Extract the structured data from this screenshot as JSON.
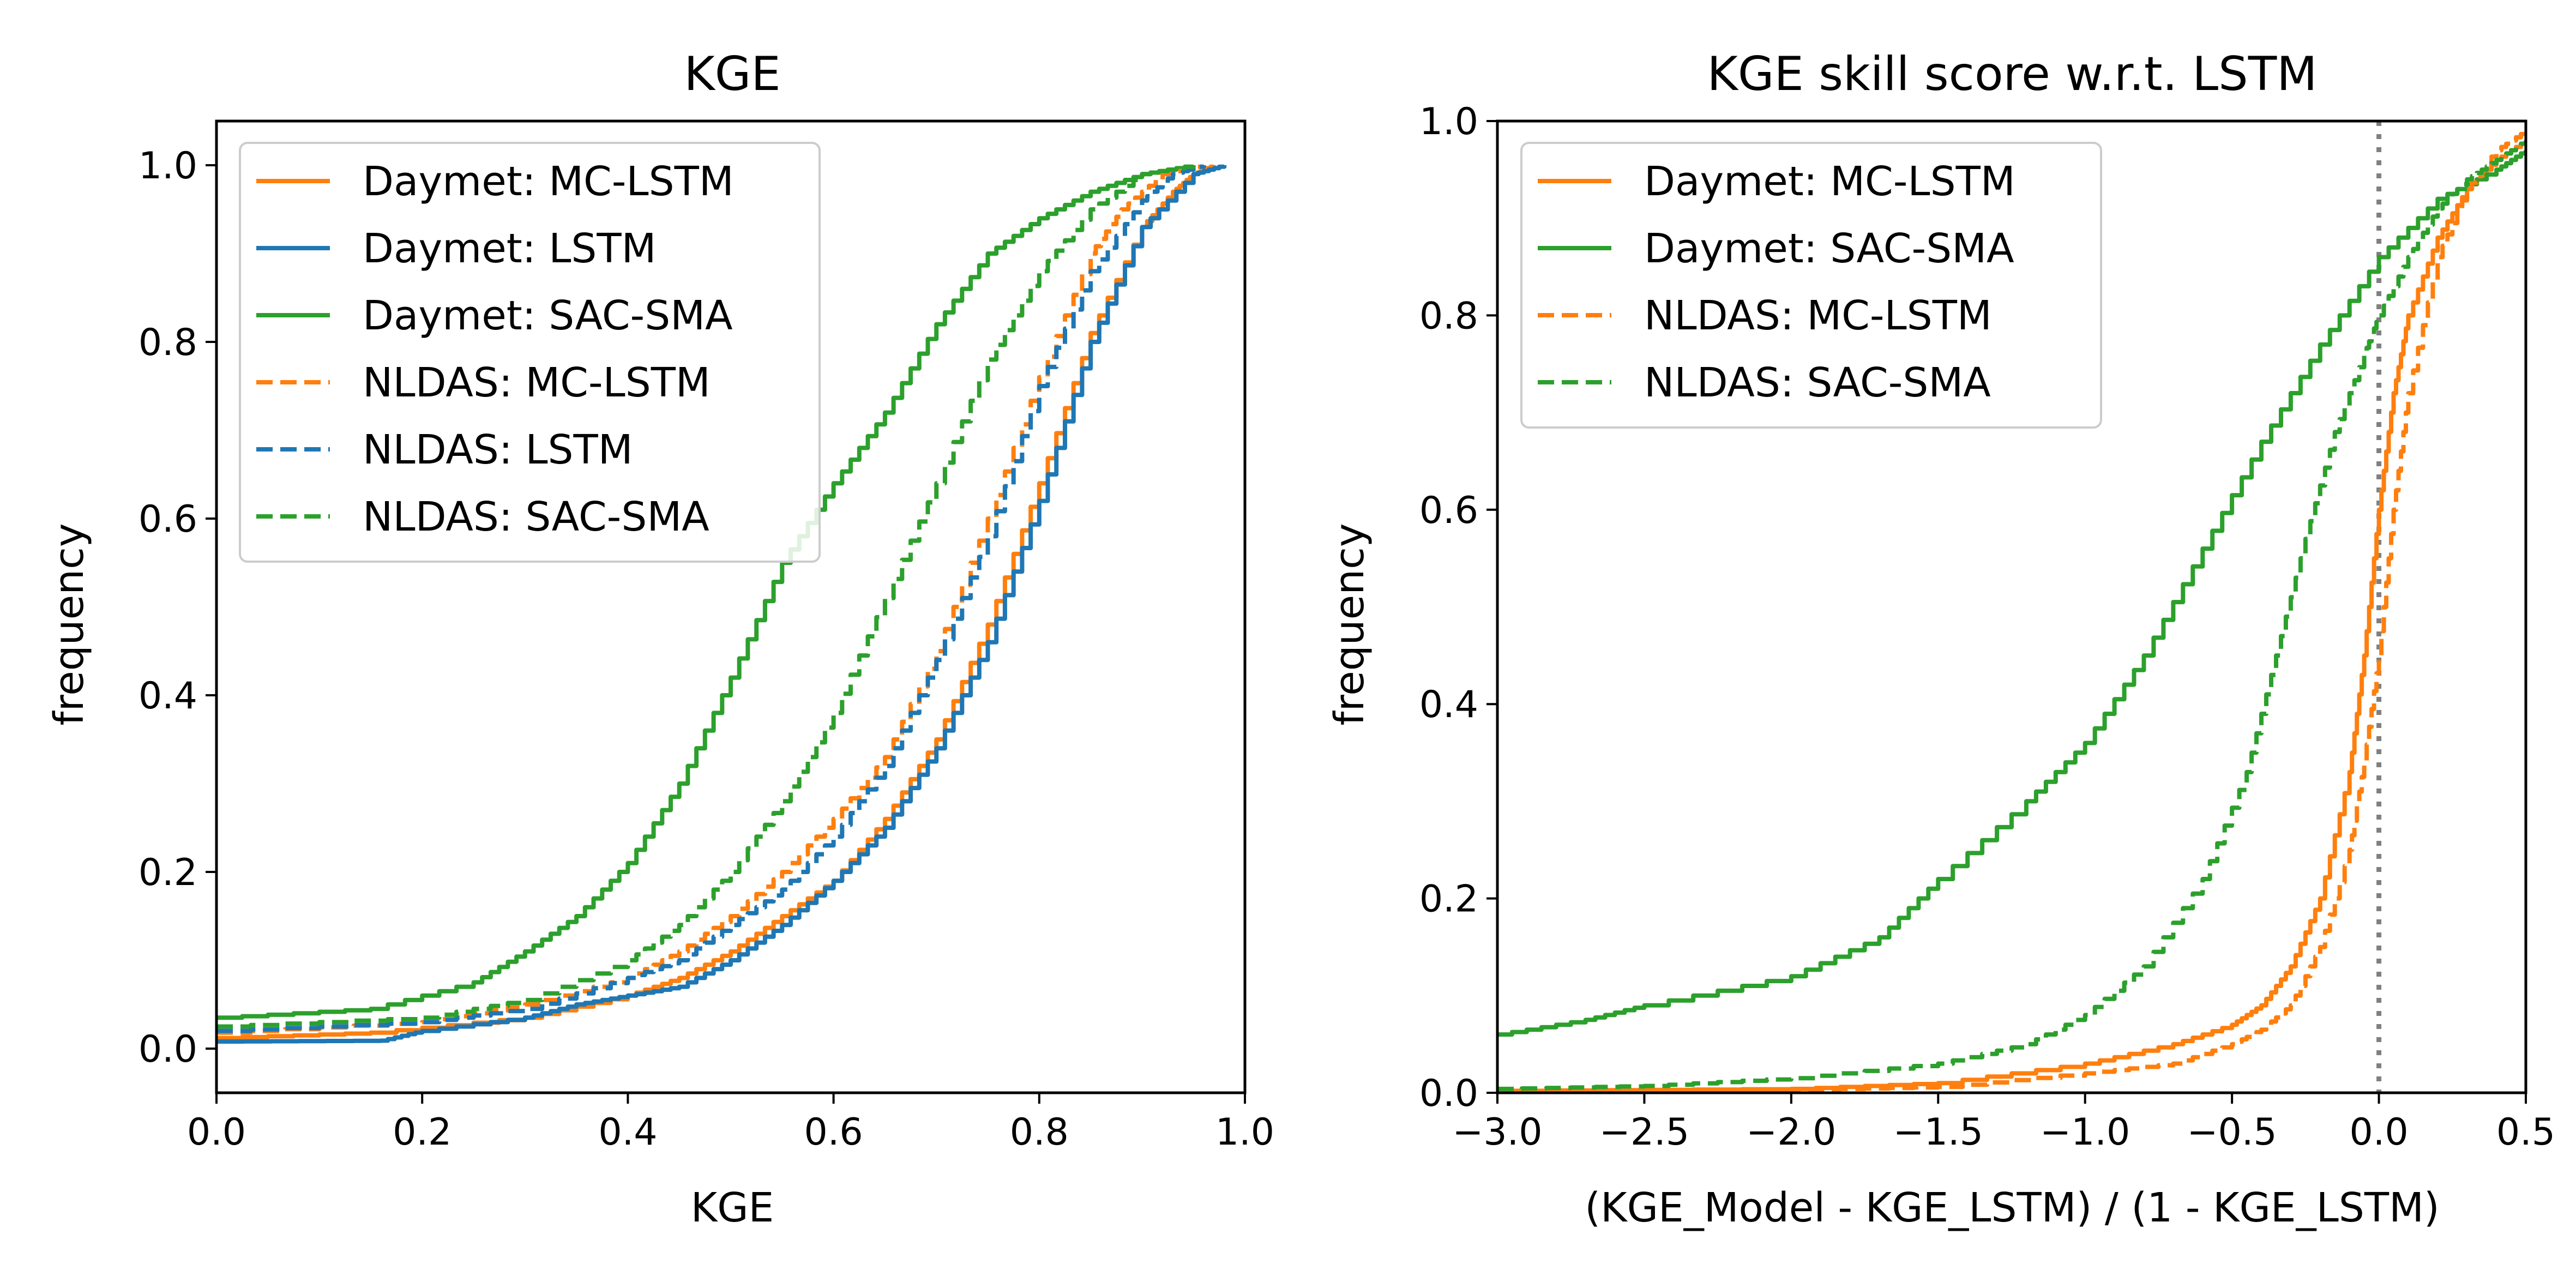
{
  "chart_data": [
    {
      "type": "line",
      "chart_kind": "cumulative distribution",
      "title": "KGE",
      "xlabel": "KGE",
      "ylabel": "frequency",
      "xlim": [
        0.0,
        1.0
      ],
      "ylim": [
        -0.05,
        1.05
      ],
      "xticks": [
        "0.0",
        "0.2",
        "0.4",
        "0.6",
        "0.8",
        "1.0"
      ],
      "yticks": [
        "0.0",
        "0.2",
        "0.4",
        "0.6",
        "0.8",
        "1.0"
      ],
      "grid": false,
      "legend_position": "upper-left",
      "series": [
        {
          "name": "Daymet: MC-LSTM",
          "color": "#ff7f0e",
          "style": "solid",
          "x": [
            0.0,
            0.15,
            0.3,
            0.4,
            0.45,
            0.5,
            0.55,
            0.6,
            0.65,
            0.7,
            0.75,
            0.8,
            0.85,
            0.9,
            0.93,
            0.95,
            0.97
          ],
          "y": [
            0.012,
            0.018,
            0.035,
            0.06,
            0.08,
            0.11,
            0.15,
            0.19,
            0.26,
            0.35,
            0.48,
            0.64,
            0.81,
            0.93,
            0.97,
            0.99,
            1.0
          ]
        },
        {
          "name": "Daymet: LSTM",
          "color": "#1f77b4",
          "style": "solid",
          "x": [
            0.0,
            0.16,
            0.2,
            0.3,
            0.35,
            0.4,
            0.45,
            0.5,
            0.55,
            0.6,
            0.65,
            0.7,
            0.75,
            0.8,
            0.85,
            0.9,
            0.95,
            0.98
          ],
          "y": [
            0.008,
            0.009,
            0.02,
            0.035,
            0.05,
            0.06,
            0.07,
            0.1,
            0.14,
            0.19,
            0.25,
            0.34,
            0.46,
            0.62,
            0.8,
            0.93,
            0.99,
            1.0
          ]
        },
        {
          "name": "Daymet: SAC-SMA",
          "color": "#2ca02c",
          "style": "solid",
          "x": [
            0.0,
            0.15,
            0.25,
            0.3,
            0.35,
            0.4,
            0.45,
            0.5,
            0.55,
            0.6,
            0.65,
            0.7,
            0.75,
            0.8,
            0.85,
            0.9,
            0.95
          ],
          "y": [
            0.035,
            0.045,
            0.075,
            0.11,
            0.15,
            0.21,
            0.3,
            0.42,
            0.55,
            0.64,
            0.72,
            0.82,
            0.9,
            0.94,
            0.97,
            0.99,
            1.0
          ]
        },
        {
          "name": "NLDAS: MC-LSTM",
          "color": "#ff7f0e",
          "style": "dashed",
          "x": [
            0.0,
            0.2,
            0.3,
            0.4,
            0.45,
            0.5,
            0.55,
            0.6,
            0.65,
            0.7,
            0.75,
            0.8,
            0.85,
            0.88,
            0.92,
            0.96
          ],
          "y": [
            0.018,
            0.03,
            0.05,
            0.08,
            0.11,
            0.15,
            0.2,
            0.26,
            0.33,
            0.45,
            0.6,
            0.76,
            0.9,
            0.95,
            0.99,
            1.0
          ]
        },
        {
          "name": "NLDAS: LSTM",
          "color": "#1f77b4",
          "style": "dashed",
          "x": [
            0.0,
            0.2,
            0.3,
            0.4,
            0.45,
            0.5,
            0.55,
            0.6,
            0.65,
            0.7,
            0.75,
            0.8,
            0.85,
            0.9,
            0.93,
            0.96
          ],
          "y": [
            0.02,
            0.03,
            0.045,
            0.08,
            0.1,
            0.14,
            0.18,
            0.24,
            0.32,
            0.44,
            0.58,
            0.75,
            0.88,
            0.96,
            0.99,
            1.0
          ]
        },
        {
          "name": "NLDAS: SAC-SMA",
          "color": "#2ca02c",
          "style": "dashed",
          "x": [
            0.0,
            0.2,
            0.3,
            0.4,
            0.45,
            0.5,
            0.55,
            0.6,
            0.65,
            0.7,
            0.75,
            0.8,
            0.85,
            0.9,
            0.95
          ],
          "y": [
            0.025,
            0.035,
            0.055,
            0.1,
            0.14,
            0.2,
            0.28,
            0.38,
            0.51,
            0.64,
            0.78,
            0.88,
            0.95,
            0.99,
            1.0
          ]
        }
      ]
    },
    {
      "type": "line",
      "chart_kind": "cumulative distribution",
      "title": "KGE skill score w.r.t. LSTM",
      "xlabel": "(KGE_Model - KGE_LSTM) / (1 - KGE_LSTM)",
      "ylabel": "frequency",
      "xlim": [
        -3.0,
        0.5
      ],
      "ylim": [
        0.0,
        1.0
      ],
      "xticks": [
        "−3.0",
        "−2.5",
        "−2.0",
        "−1.5",
        "−1.0",
        "−0.5",
        "0.0",
        "0.5"
      ],
      "yticks": [
        "0.0",
        "0.2",
        "0.4",
        "0.6",
        "0.8",
        "1.0"
      ],
      "grid": false,
      "legend_position": "upper-left",
      "reference_line": {
        "x": 0.0,
        "color": "#808080",
        "style": "dotted"
      },
      "series": [
        {
          "name": "Daymet: MC-LSTM",
          "color": "#ff7f0e",
          "style": "solid",
          "x": [
            -3.0,
            -2.0,
            -1.5,
            -1.0,
            -0.7,
            -0.5,
            -0.4,
            -0.3,
            -0.2,
            -0.1,
            -0.05,
            0.0,
            0.05,
            0.1,
            0.2,
            0.3,
            0.4,
            0.5
          ],
          "y": [
            0.002,
            0.004,
            0.01,
            0.03,
            0.05,
            0.07,
            0.09,
            0.13,
            0.2,
            0.33,
            0.45,
            0.6,
            0.72,
            0.8,
            0.88,
            0.93,
            0.96,
            0.98
          ]
        },
        {
          "name": "Daymet: SAC-SMA",
          "color": "#2ca02c",
          "style": "solid",
          "x": [
            -3.0,
            -2.7,
            -2.5,
            -2.0,
            -1.7,
            -1.5,
            -1.2,
            -1.0,
            -0.8,
            -0.6,
            -0.4,
            -0.2,
            0.0,
            0.2,
            0.4,
            0.5
          ],
          "y": [
            0.06,
            0.075,
            0.09,
            0.12,
            0.16,
            0.22,
            0.3,
            0.36,
            0.45,
            0.56,
            0.67,
            0.77,
            0.86,
            0.92,
            0.95,
            0.97
          ]
        },
        {
          "name": "NLDAS: MC-LSTM",
          "color": "#ff7f0e",
          "style": "dashed",
          "x": [
            -3.0,
            -2.0,
            -1.5,
            -1.0,
            -0.7,
            -0.5,
            -0.4,
            -0.3,
            -0.2,
            -0.1,
            -0.05,
            0.0,
            0.05,
            0.1,
            0.2,
            0.3,
            0.4,
            0.5
          ],
          "y": [
            0.002,
            0.003,
            0.006,
            0.02,
            0.03,
            0.05,
            0.065,
            0.09,
            0.15,
            0.25,
            0.34,
            0.45,
            0.6,
            0.72,
            0.86,
            0.93,
            0.97,
            0.99
          ]
        },
        {
          "name": "NLDAS: SAC-SMA",
          "color": "#2ca02c",
          "style": "dashed",
          "x": [
            -3.0,
            -2.5,
            -2.0,
            -1.5,
            -1.2,
            -1.0,
            -0.8,
            -0.6,
            -0.45,
            -0.35,
            -0.25,
            -0.15,
            -0.05,
            0.0,
            0.1,
            0.2,
            0.3,
            0.4,
            0.5
          ],
          "y": [
            0.004,
            0.007,
            0.015,
            0.03,
            0.05,
            0.08,
            0.13,
            0.22,
            0.33,
            0.45,
            0.57,
            0.68,
            0.76,
            0.8,
            0.86,
            0.91,
            0.94,
            0.96,
            0.98
          ]
        }
      ]
    }
  ]
}
